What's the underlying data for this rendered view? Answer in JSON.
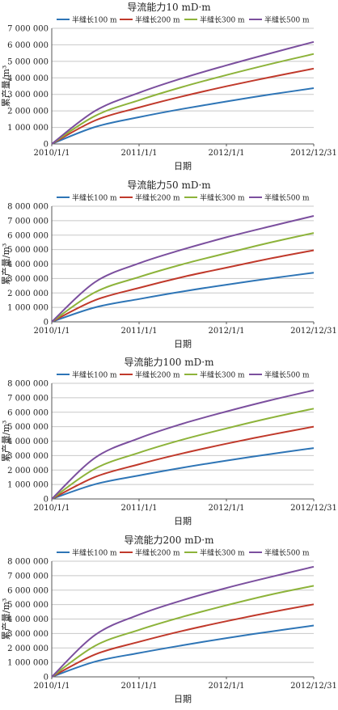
{
  "chart_data": [
    {
      "type": "line",
      "title": "导流能力10 mD·m",
      "xlabel": "日期",
      "ylabel": "累产量/m³",
      "x_ticks": [
        "2010/1/1",
        "2011/1/1",
        "2012/1/1",
        "2012/12/31"
      ],
      "x_range": [
        "2010-01-01",
        "2012-12-31"
      ],
      "ylim": [
        0,
        7000000
      ],
      "y_ticks": [
        "0",
        "1 000 000",
        "2 000 000",
        "3 000 000",
        "4 000 000",
        "5 000 000",
        "6 000 000",
        "7 000 000"
      ],
      "legend_position": "top",
      "grid": true,
      "x": [
        "2010-01-01",
        "2010-07-01",
        "2011-01-01",
        "2011-07-01",
        "2012-01-01",
        "2012-07-01",
        "2012-12-31"
      ],
      "series": [
        {
          "name": "半缝长100 m",
          "color": "#2e75b6",
          "values": [
            0,
            1030000,
            1620000,
            2120000,
            2570000,
            2990000,
            3380000
          ]
        },
        {
          "name": "半缝长200 m",
          "color": "#c0392b",
          "values": [
            0,
            1420000,
            2210000,
            2880000,
            3490000,
            4040000,
            4560000
          ]
        },
        {
          "name": "半缝长300 m",
          "color": "#8db33a",
          "values": [
            0,
            1700000,
            2650000,
            3450000,
            4170000,
            4830000,
            5450000
          ]
        },
        {
          "name": "半缝长500 m",
          "color": "#7b4f9e",
          "values": [
            0,
            2000000,
            3100000,
            3980000,
            4760000,
            5480000,
            6180000
          ]
        }
      ]
    },
    {
      "type": "line",
      "title": "导流能力50 mD·m",
      "xlabel": "日期",
      "ylabel": "累产量/m³",
      "x_ticks": [
        "2010/1/1",
        "2011/1/1",
        "2012/1/1",
        "2012/12/31"
      ],
      "x_range": [
        "2010-01-01",
        "2012-12-31"
      ],
      "ylim": [
        0,
        8000000
      ],
      "y_ticks": [
        "0",
        "1 000 000",
        "2 000 000",
        "3 000 000",
        "4 000 000",
        "5 000 000",
        "6 000 000",
        "7 000 000",
        "8 000 000"
      ],
      "legend_position": "top",
      "grid": true,
      "x": [
        "2010-01-01",
        "2010-07-01",
        "2011-01-01",
        "2011-07-01",
        "2012-01-01",
        "2012-07-01",
        "2012-12-31"
      ],
      "series": [
        {
          "name": "半缝长100 m",
          "color": "#2e75b6",
          "values": [
            0,
            1000000,
            1580000,
            2100000,
            2570000,
            3000000,
            3400000
          ]
        },
        {
          "name": "半缝长200 m",
          "color": "#c0392b",
          "values": [
            0,
            1500000,
            2350000,
            3100000,
            3750000,
            4380000,
            4950000
          ]
        },
        {
          "name": "半缝长300 m",
          "color": "#8db33a",
          "values": [
            0,
            2050000,
            3100000,
            3980000,
            4750000,
            5480000,
            6150000
          ]
        },
        {
          "name": "半缝长500 m",
          "color": "#7b4f9e",
          "values": [
            0,
            2750000,
            4050000,
            5000000,
            5850000,
            6600000,
            7330000
          ]
        }
      ]
    },
    {
      "type": "line",
      "title": "导流能力100 mD·m",
      "xlabel": "日期",
      "ylabel": "累产量/m³",
      "x_ticks": [
        "2010/1/1",
        "2011/1/1",
        "2012/1/1",
        "2012/12/31"
      ],
      "x_range": [
        "2010-01-01",
        "2012-12-31"
      ],
      "ylim": [
        0,
        8000000
      ],
      "y_ticks": [
        "0",
        "1 000 000",
        "2 000 000",
        "3 000 000",
        "4 000 000",
        "5 000 000",
        "6 000 000",
        "7 000 000",
        "8 000 000"
      ],
      "legend_position": "top",
      "grid": true,
      "x": [
        "2010-01-01",
        "2010-07-01",
        "2011-01-01",
        "2011-07-01",
        "2012-01-01",
        "2012-07-01",
        "2012-12-31"
      ],
      "series": [
        {
          "name": "半缝长100 m",
          "color": "#2e75b6",
          "values": [
            0,
            1020000,
            1620000,
            2160000,
            2650000,
            3100000,
            3520000
          ]
        },
        {
          "name": "半缝长200 m",
          "color": "#c0392b",
          "values": [
            0,
            1520000,
            2400000,
            3150000,
            3820000,
            4430000,
            5000000
          ]
        },
        {
          "name": "半缝长300 m",
          "color": "#8db33a",
          "values": [
            0,
            2100000,
            3200000,
            4100000,
            4880000,
            5600000,
            6250000
          ]
        },
        {
          "name": "半缝长500 m",
          "color": "#7b4f9e",
          "values": [
            0,
            2850000,
            4200000,
            5200000,
            6050000,
            6820000,
            7520000
          ]
        }
      ]
    },
    {
      "type": "line",
      "title": "导流能力200 mD·m",
      "xlabel": "日期",
      "ylabel": "累产量/m³",
      "x_ticks": [
        "2010/1/1",
        "2011/1/1",
        "2012/1/1",
        "2012/12/31"
      ],
      "x_range": [
        "2010-01-01",
        "2012-12-31"
      ],
      "ylim": [
        0,
        8000000
      ],
      "y_ticks": [
        "0",
        "1 000 000",
        "2 000 000",
        "3 000 000",
        "4 000 000",
        "5 000 000",
        "6 000 000",
        "7 000 000",
        "8 000 000"
      ],
      "legend_position": "top",
      "grid": true,
      "x": [
        "2010-01-01",
        "2010-07-01",
        "2011-01-01",
        "2011-07-01",
        "2012-01-01",
        "2012-07-01",
        "2012-12-31"
      ],
      "series": [
        {
          "name": "半缝长100 m",
          "color": "#2e75b6",
          "values": [
            0,
            1050000,
            1650000,
            2180000,
            2680000,
            3130000,
            3550000
          ]
        },
        {
          "name": "半缝长200 m",
          "color": "#c0392b",
          "values": [
            0,
            1550000,
            2420000,
            3180000,
            3850000,
            4460000,
            5020000
          ]
        },
        {
          "name": "半缝长300 m",
          "color": "#8db33a",
          "values": [
            0,
            2150000,
            3250000,
            4150000,
            4950000,
            5680000,
            6300000
          ]
        },
        {
          "name": "半缝长500 m",
          "color": "#7b4f9e",
          "values": [
            0,
            2900000,
            4300000,
            5300000,
            6150000,
            6900000,
            7620000
          ]
        }
      ]
    }
  ]
}
